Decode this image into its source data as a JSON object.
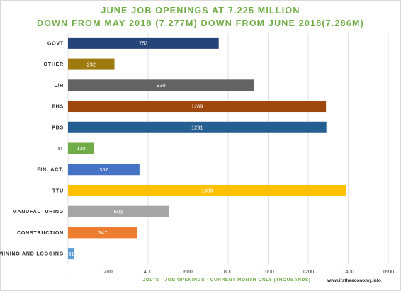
{
  "chart_data": {
    "type": "bar",
    "orientation": "horizontal",
    "title": "JUNE JOB OPENINGS AT 7.225 MILLION",
    "subtitle": "DOWN FROM MAY 2018 (7.277M) DOWN FROM JUNE 2018(7.286M)",
    "xlabel": "JOLTS - JOB OPENINGS - CURRENT MONTH ONLY (THOUSANDS)",
    "ylabel": "",
    "xlim": [
      0,
      1600
    ],
    "x_ticks": [
      0,
      200,
      400,
      600,
      800,
      1000,
      1200,
      1400,
      1600
    ],
    "grid": true,
    "legend": "none",
    "categories": [
      "GOVT",
      "OTHER",
      "L/H",
      "EHS",
      "PBS",
      "IT",
      "FIN. ACT.",
      "TTU",
      "MANUFACTURING",
      "CONSTRUCTION",
      "MINING AND LOGGING"
    ],
    "values": [
      753,
      232,
      930,
      1289,
      1291,
      130,
      357,
      1389,
      503,
      347,
      31
    ],
    "colors": [
      "#264478",
      "#9e7a0f",
      "#636363",
      "#9e480e",
      "#255e91",
      "#70ad47",
      "#4472c4",
      "#ffc000",
      "#a5a5a5",
      "#ed7d31",
      "#5b9bd5"
    ]
  },
  "watermark": "www.itstheeconomy.info"
}
